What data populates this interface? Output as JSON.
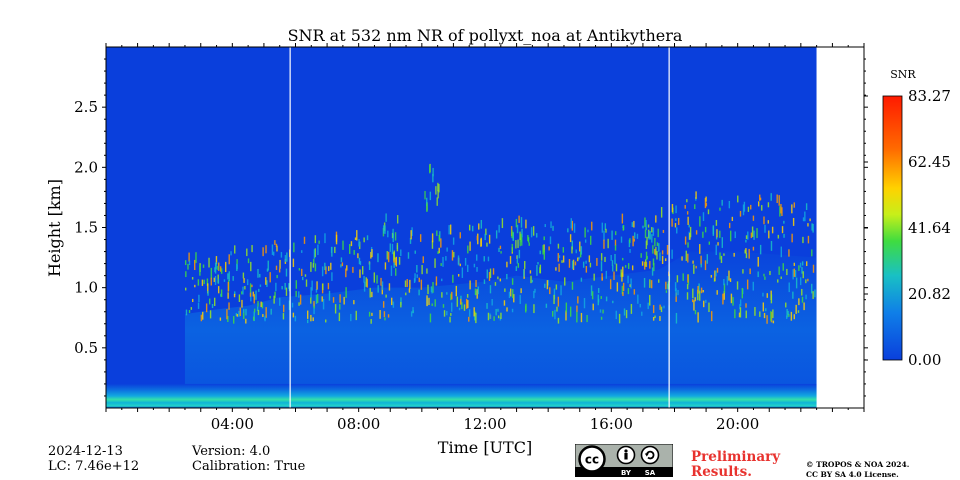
{
  "chart_data": {
    "type": "heatmap",
    "title": "SNR at 532 nm NR of pollyxt_noa at Antikythera",
    "xlabel": "Time [UTC]",
    "ylabel": "Height [km]",
    "xlim": [
      0,
      24
    ],
    "ylim": [
      0,
      3.0
    ],
    "x_ticks": [
      "04:00",
      "08:00",
      "12:00",
      "16:00",
      "20:00"
    ],
    "x_tick_values": [
      4,
      8,
      12,
      16,
      20
    ],
    "y_ticks": [
      "0.5",
      "1.0",
      "1.5",
      "2.0",
      "2.5"
    ],
    "y_tick_values": [
      0.5,
      1.0,
      1.5,
      2.0,
      2.5
    ],
    "data_end_hour": 22.5,
    "gaps_hours": [
      5.83,
      17.83
    ],
    "colorbar": {
      "label": "SNR",
      "min": 0.0,
      "max": 83.27,
      "ticks": [
        "0.00",
        "20.82",
        "41.64",
        "62.45",
        "83.27"
      ],
      "colormap": "jet"
    },
    "background_color": "#0a3fdc",
    "features": {
      "surface_layer_height_km": [
        0.0,
        0.2
      ],
      "aerosol_layer_top_km": [
        {
          "hour": 2.5,
          "top": 0.78
        },
        {
          "hour": 3.5,
          "top": 0.82
        },
        {
          "hour": 4.5,
          "top": 0.85
        },
        {
          "hour": 5.5,
          "top": 0.92
        },
        {
          "hour": 7.0,
          "top": 0.95
        },
        {
          "hour": 8.5,
          "top": 1.0
        },
        {
          "hour": 10.0,
          "top": 1.0
        },
        {
          "hour": 12.0,
          "top": 1.05
        },
        {
          "hour": 13.0,
          "top": 1.1
        },
        {
          "hour": 14.5,
          "top": 1.05
        },
        {
          "hour": 16.0,
          "top": 1.1
        },
        {
          "hour": 17.5,
          "top": 1.15
        },
        {
          "hour": 18.5,
          "top": 1.3
        },
        {
          "hour": 20.0,
          "top": 1.3
        },
        {
          "hour": 22.5,
          "top": 1.25
        }
      ],
      "cloud_streaks": [
        {
          "hour": 10.3,
          "bottom": 1.6,
          "top": 2.05
        },
        {
          "hour": 9.0,
          "bottom": 1.2,
          "top": 1.65
        },
        {
          "hour": 13.0,
          "bottom": 1.2,
          "top": 1.6
        },
        {
          "hour": 17.3,
          "bottom": 1.2,
          "top": 1.5
        }
      ]
    }
  },
  "footer": {
    "date": "2024-12-13",
    "lc": "LC: 7.46e+12",
    "version": "Version: 4.0",
    "calibration": "Calibration: True",
    "prelim_line1": "Preliminary",
    "prelim_line2": "Results.",
    "license_line1": "© TROPOS & NOA 2024.",
    "license_line2": "CC BY SA 4.0 License.",
    "cc_text": "cc",
    "cc_by": "BY",
    "cc_sa": "SA"
  },
  "colors": {
    "prelim": "#e8322e",
    "colormap_stops": [
      "#00008f",
      "#0000ff",
      "#00ffff",
      "#ffff00",
      "#ff0000",
      "#800000"
    ]
  }
}
